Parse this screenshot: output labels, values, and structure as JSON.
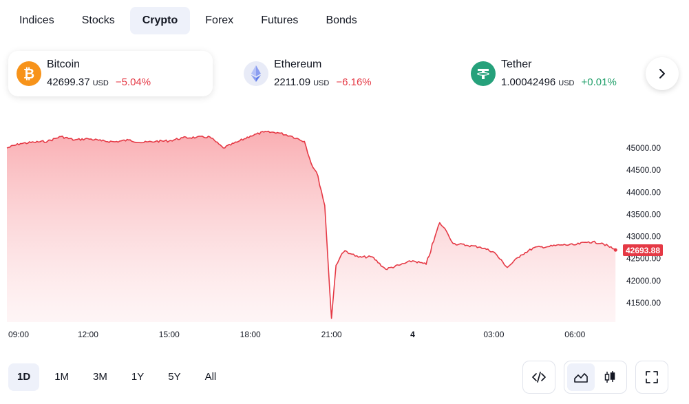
{
  "tabs": [
    {
      "label": "Indices",
      "active": false
    },
    {
      "label": "Stocks",
      "active": false
    },
    {
      "label": "Crypto",
      "active": true
    },
    {
      "label": "Forex",
      "active": false
    },
    {
      "label": "Futures",
      "active": false
    },
    {
      "label": "Bonds",
      "active": false
    }
  ],
  "coins": [
    {
      "name": "Bitcoin",
      "price": "42699.37",
      "unit": "USD",
      "change": "−5.04%",
      "icon": "bitcoin-icon",
      "color": "#f7931a"
    },
    {
      "name": "Ethereum",
      "price": "2211.09",
      "unit": "USD",
      "change": "−6.16%",
      "icon": "ethereum-icon",
      "color": "#627eea"
    },
    {
      "name": "Tether",
      "price": "1.00042496",
      "unit": "USD",
      "change": "+0.01%",
      "icon": "tether-icon",
      "color": "#26a17b"
    }
  ],
  "chart": {
    "line_color": "#e53945",
    "y_ticks": [
      "45000.00",
      "44500.00",
      "44000.00",
      "43500.00",
      "43000.00",
      "42500.00",
      "42000.00",
      "41500.00"
    ],
    "x_ticks": [
      "09:00",
      "12:00",
      "15:00",
      "18:00",
      "21:00",
      "4",
      "03:00",
      "06:00"
    ],
    "last_price": "42693.88"
  },
  "chart_data": {
    "type": "area",
    "x_labels": [
      "09:00",
      "12:00",
      "15:00",
      "18:00",
      "21:00",
      "4",
      "03:00",
      "06:00"
    ],
    "ylim": [
      41000,
      45500
    ],
    "series": [
      {
        "x": [
          "09:00",
          "09:30",
          "10:00",
          "10:30",
          "11:00",
          "11:30",
          "12:00",
          "12:30",
          "13:00",
          "13:30",
          "14:00",
          "14:30",
          "15:00",
          "15:30",
          "16:00",
          "16:30",
          "17:00",
          "17:30",
          "18:00",
          "18:30",
          "19:00",
          "19:30",
          "20:00",
          "20:15",
          "20:30",
          "20:45",
          "21:00",
          "21:10",
          "21:20",
          "21:30",
          "21:45",
          "22:00",
          "22:30",
          "23:00",
          "23:30",
          "00:00",
          "00:30",
          "01:00",
          "01:15",
          "01:30",
          "02:00",
          "02:30",
          "03:00",
          "03:30",
          "04:00",
          "04:30",
          "05:00",
          "05:30",
          "06:00",
          "06:30",
          "07:00",
          "07:30"
        ],
        "values": [
          45000,
          45100,
          45130,
          45150,
          45260,
          45180,
          45210,
          45160,
          45140,
          45180,
          45120,
          45150,
          45160,
          45230,
          45240,
          45250,
          45000,
          45130,
          45270,
          45360,
          45350,
          45270,
          45150,
          44650,
          44370,
          43700,
          41150,
          42350,
          42550,
          42680,
          42600,
          42530,
          42540,
          42260,
          42350,
          42450,
          42370,
          43310,
          43120,
          42840,
          42800,
          42760,
          42650,
          42300,
          42580,
          42750,
          42770,
          42810,
          42810,
          42880,
          42850,
          42694
        ]
      }
    ]
  },
  "ranges": [
    {
      "label": "1D",
      "active": true
    },
    {
      "label": "1M",
      "active": false
    },
    {
      "label": "3M",
      "active": false
    },
    {
      "label": "1Y",
      "active": false
    },
    {
      "label": "5Y",
      "active": false
    },
    {
      "label": "All",
      "active": false
    }
  ],
  "tools": {
    "embed": "code-icon",
    "area": "area-chart-icon",
    "candles": "candlestick-icon",
    "fullscreen": "fullscreen-icon"
  }
}
